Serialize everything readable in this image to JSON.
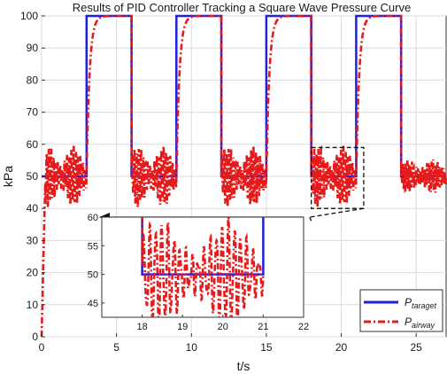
{
  "chart_data": [
    {
      "type": "line",
      "title": "Results of PID Controller Tracking a Square Wave Pressure Curve",
      "xlabel": "t/s",
      "ylabel": "kPa",
      "xlim": [
        0,
        27
      ],
      "ylim": [
        0,
        100
      ],
      "xticks": [
        0,
        5,
        10,
        15,
        20,
        25
      ],
      "yticks": [
        0,
        10,
        20,
        30,
        40,
        50,
        60,
        70,
        80,
        90,
        100
      ],
      "grid": true,
      "legend_position": "bottom-right",
      "series": [
        {
          "name": "P_taraget",
          "color": "#1f1fe0",
          "style": "solid",
          "description": "square wave",
          "x": [
            0,
            3,
            3,
            6,
            6,
            9,
            9,
            12,
            12,
            15,
            15,
            18,
            18,
            21,
            21,
            24,
            24,
            27
          ],
          "y": [
            50,
            50,
            100,
            100,
            50,
            50,
            100,
            100,
            50,
            50,
            100,
            100,
            50,
            50,
            100,
            100,
            50,
            50
          ]
        },
        {
          "name": "P_airway",
          "color": "#e61a1a",
          "style": "dash-dot",
          "segments": [
            {
              "x_start": 0,
              "x_end": 3,
              "level": 50,
              "amplitude": 8.5,
              "period": 0.15
            },
            {
              "x_start": 3,
              "x_end": 6,
              "level": 100,
              "rise_from": 50,
              "tau": 0.2
            },
            {
              "x_start": 6,
              "x_end": 9,
              "level": 50,
              "amplitude": 8.5,
              "period": 0.15
            },
            {
              "x_start": 9,
              "x_end": 12,
              "level": 100,
              "rise_from": 50,
              "tau": 0.2
            },
            {
              "x_start": 12,
              "x_end": 15,
              "level": 50,
              "amplitude": 8.5,
              "period": 0.15
            },
            {
              "x_start": 15,
              "x_end": 18,
              "level": 100,
              "rise_from": 50,
              "tau": 0.2
            },
            {
              "x_start": 18,
              "x_end": 21,
              "level": 50,
              "amplitude": 8.5,
              "period": 0.15
            },
            {
              "x_start": 21,
              "x_end": 24,
              "level": 100,
              "rise_from": 50,
              "tau": 0.2
            },
            {
              "x_start": 24,
              "x_end": 27,
              "level": 50,
              "amplitude": 4,
              "period": 0.1
            }
          ]
        }
      ],
      "legend": [
        {
          "base": "P",
          "sub": "taraget"
        },
        {
          "base": "P",
          "sub": "airway"
        }
      ]
    },
    {
      "type": "line",
      "title": "",
      "inset": true,
      "xlim": [
        17,
        22
      ],
      "ylim": [
        42.5,
        60
      ],
      "xticks": [
        18,
        19,
        20,
        21,
        22
      ],
      "yticks": [
        45,
        50,
        55,
        60
      ],
      "zoom_box": {
        "x": [
          18,
          21.5
        ],
        "y": [
          40,
          59
        ]
      }
    }
  ]
}
